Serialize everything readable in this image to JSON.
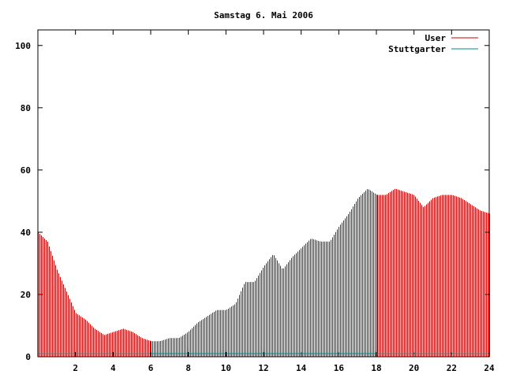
{
  "chart_data": {
    "type": "bar",
    "title": "Samstag 6. Mai 2006",
    "xlabel": "",
    "ylabel": "",
    "xlim": [
      0,
      24
    ],
    "ylim": [
      0,
      105
    ],
    "x_ticks": [
      "2",
      "4",
      "6",
      "8",
      "10",
      "12",
      "14",
      "16",
      "18",
      "20",
      "22",
      "24"
    ],
    "y_ticks": [
      "0",
      "20",
      "40",
      "60",
      "80",
      "100"
    ],
    "legend_position": "top-right",
    "grid": false,
    "series": [
      {
        "name": "User",
        "color": "#cc0000",
        "x": [
          0,
          0.5,
          1,
          1.5,
          2,
          2.5,
          3,
          3.5,
          4,
          4.5,
          5,
          5.5,
          6,
          6.5,
          7,
          7.5,
          8,
          8.5,
          9,
          9.5,
          10,
          10.5,
          11,
          11.5,
          12,
          12.5,
          13,
          13.5,
          14,
          14.5,
          15,
          15.5,
          16,
          16.5,
          17,
          17.5,
          18,
          18.5,
          19,
          19.5,
          20,
          20.5,
          21,
          21.5,
          22,
          22.5,
          23,
          23.5,
          24
        ],
        "values": [
          40,
          37,
          28,
          21,
          14,
          12,
          9,
          7,
          8,
          9,
          8,
          6,
          5,
          5,
          6,
          6,
          8,
          11,
          13,
          15,
          15,
          17,
          24,
          24,
          29,
          33,
          28,
          32,
          35,
          38,
          37,
          37,
          42,
          46,
          51,
          54,
          52,
          52,
          54,
          53,
          52,
          48,
          51,
          52,
          52,
          51,
          49,
          47,
          46
        ]
      },
      {
        "name": "Stuttgarter",
        "color": "#008b8b",
        "x": [
          0,
          24
        ],
        "values": [
          1,
          1
        ]
      }
    ]
  }
}
